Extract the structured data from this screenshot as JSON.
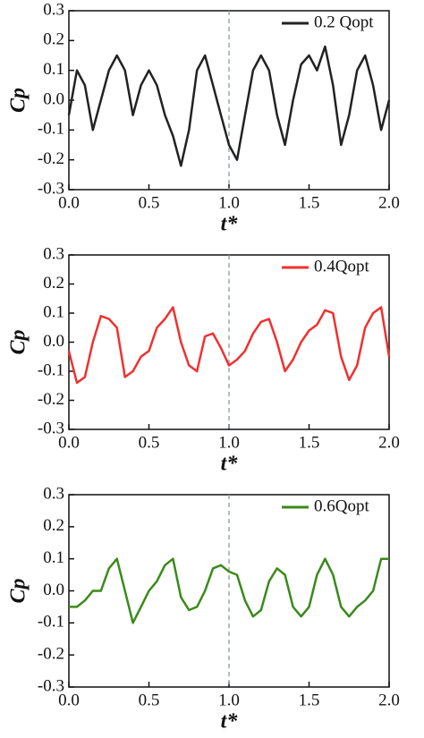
{
  "chart_data": [
    {
      "type": "line",
      "xlabel": "t*",
      "ylabel": "Cp",
      "x": [
        0,
        0.05,
        0.1,
        0.15,
        0.2,
        0.25,
        0.3,
        0.35,
        0.4,
        0.45,
        0.5,
        0.55,
        0.6,
        0.65,
        0.7,
        0.75,
        0.8,
        0.85,
        0.9,
        0.95,
        1.0,
        1.05,
        1.1,
        1.15,
        1.2,
        1.25,
        1.3,
        1.35,
        1.4,
        1.45,
        1.5,
        1.55,
        1.6,
        1.65,
        1.7,
        1.75,
        1.8,
        1.85,
        1.9,
        1.95,
        2.0
      ],
      "series": [
        {
          "name": "0.2 Qopt",
          "color": "#222222",
          "values": [
            -0.05,
            0.1,
            0.05,
            -0.1,
            0.0,
            0.1,
            0.15,
            0.1,
            -0.05,
            0.05,
            0.1,
            0.05,
            -0.05,
            -0.12,
            -0.22,
            -0.1,
            0.1,
            0.15,
            0.05,
            -0.05,
            -0.15,
            -0.2,
            -0.05,
            0.1,
            0.15,
            0.1,
            -0.05,
            -0.15,
            0.0,
            0.12,
            0.15,
            0.1,
            0.18,
            0.05,
            -0.15,
            -0.05,
            0.1,
            0.15,
            0.05,
            -0.1,
            0.0
          ]
        }
      ],
      "xlim": [
        0,
        2
      ],
      "ylim": [
        -0.3,
        0.3
      ],
      "xticks": [
        {
          "value": 0,
          "label": "0.0"
        },
        0.5,
        {
          "value": 1,
          "label": "1.0"
        },
        1.5,
        {
          "value": 2,
          "label": "2.0"
        }
      ],
      "yticks": [
        0.3,
        0.2,
        0.1,
        {
          "value": 0,
          "label": "0.0"
        },
        -0.1,
        -0.2,
        -0.3
      ],
      "vline": 1,
      "legend": "top-right"
    },
    {
      "type": "line",
      "xlabel": "t*",
      "ylabel": "Cp",
      "x": [
        0,
        0.05,
        0.1,
        0.15,
        0.2,
        0.25,
        0.3,
        0.35,
        0.4,
        0.45,
        0.5,
        0.55,
        0.6,
        0.65,
        0.7,
        0.75,
        0.8,
        0.85,
        0.9,
        0.95,
        1.0,
        1.05,
        1.1,
        1.15,
        1.2,
        1.25,
        1.3,
        1.35,
        1.4,
        1.45,
        1.5,
        1.55,
        1.6,
        1.65,
        1.7,
        1.75,
        1.8,
        1.85,
        1.9,
        1.95,
        2.0
      ],
      "series": [
        {
          "name": "0.4Qopt",
          "color": "#f03030",
          "values": [
            -0.03,
            -0.14,
            -0.12,
            0.0,
            0.09,
            0.08,
            0.05,
            -0.12,
            -0.1,
            -0.05,
            -0.03,
            0.05,
            0.08,
            0.12,
            0.0,
            -0.08,
            -0.1,
            0.02,
            0.03,
            -0.02,
            -0.08,
            -0.06,
            -0.03,
            0.03,
            0.07,
            0.08,
            0.0,
            -0.1,
            -0.06,
            0.0,
            0.04,
            0.06,
            0.11,
            0.1,
            -0.05,
            -0.13,
            -0.08,
            0.05,
            0.1,
            0.12,
            -0.05
          ]
        }
      ],
      "xlim": [
        0,
        2
      ],
      "ylim": [
        -0.3,
        0.3
      ],
      "xticks": [
        {
          "value": 0,
          "label": "0.0"
        },
        0.5,
        {
          "value": 1,
          "label": "1.0"
        },
        1.5,
        {
          "value": 2,
          "label": "2.0"
        }
      ],
      "yticks": [
        0.3,
        0.2,
        0.1,
        {
          "value": 0,
          "label": "0.0"
        },
        -0.1,
        -0.2,
        -0.3
      ],
      "vline": 1,
      "legend": "top-right"
    },
    {
      "type": "line",
      "xlabel": "t*",
      "ylabel": "Cp",
      "x": [
        0,
        0.05,
        0.1,
        0.15,
        0.2,
        0.25,
        0.3,
        0.35,
        0.4,
        0.45,
        0.5,
        0.55,
        0.6,
        0.65,
        0.7,
        0.75,
        0.8,
        0.85,
        0.9,
        0.95,
        1.0,
        1.05,
        1.1,
        1.15,
        1.2,
        1.25,
        1.3,
        1.35,
        1.4,
        1.45,
        1.5,
        1.55,
        1.6,
        1.65,
        1.7,
        1.75,
        1.8,
        1.85,
        1.9,
        1.95,
        2.0
      ],
      "series": [
        {
          "name": "0.6Qopt",
          "color": "#3a8a1a",
          "values": [
            -0.05,
            -0.05,
            -0.03,
            0.0,
            0.0,
            0.07,
            0.1,
            0.0,
            -0.1,
            -0.05,
            0.0,
            0.03,
            0.08,
            0.1,
            -0.02,
            -0.06,
            -0.05,
            0.0,
            0.07,
            0.08,
            0.06,
            0.05,
            -0.03,
            -0.08,
            -0.06,
            0.03,
            0.07,
            0.05,
            -0.05,
            -0.08,
            -0.05,
            0.05,
            0.1,
            0.05,
            -0.05,
            -0.08,
            -0.05,
            -0.03,
            0.0,
            0.1,
            0.1
          ]
        }
      ],
      "xlim": [
        0,
        2
      ],
      "ylim": [
        -0.3,
        0.3
      ],
      "xticks": [
        {
          "value": 0,
          "label": "0.0"
        },
        0.5,
        {
          "value": 1,
          "label": "1.0"
        },
        1.5,
        {
          "value": 2,
          "label": "2.0"
        }
      ],
      "yticks": [
        0.3,
        0.2,
        0.1,
        {
          "value": 0,
          "label": "0.0"
        },
        -0.1,
        -0.2,
        -0.3
      ],
      "vline": 1,
      "legend": "top-right"
    }
  ]
}
